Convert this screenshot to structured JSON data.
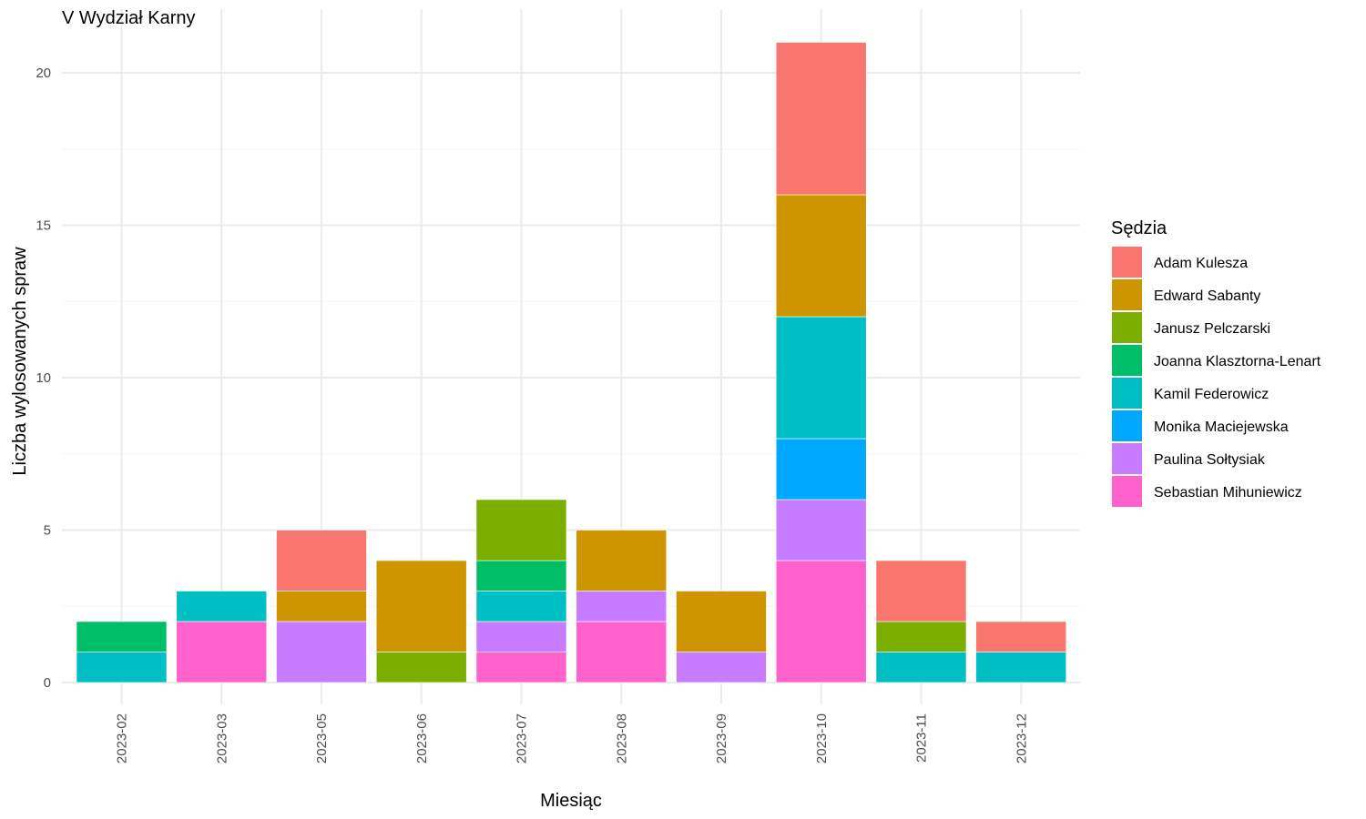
{
  "chart_data": {
    "type": "bar",
    "stacked": true,
    "title": "V Wydział Karny",
    "xlabel": "Miesiąc",
    "ylabel": "Liczba wylosowanych spraw",
    "ylim": [
      0,
      21
    ],
    "yticks": [
      0,
      5,
      10,
      15,
      20
    ],
    "grid": true,
    "legend_title": "Sędzia",
    "legend_position": "right",
    "categories": [
      "2023-02",
      "2023-03",
      "2023-05",
      "2023-06",
      "2023-07",
      "2023-08",
      "2023-09",
      "2023-10",
      "2023-11",
      "2023-12"
    ],
    "series": [
      {
        "name": "Adam Kulesza",
        "color": "#F8766D",
        "values": [
          0,
          0,
          2,
          0,
          0,
          0,
          0,
          5,
          2,
          1
        ]
      },
      {
        "name": "Edward Sabanty",
        "color": "#CD9600",
        "values": [
          0,
          0,
          1,
          3,
          0,
          2,
          2,
          4,
          0,
          0
        ]
      },
      {
        "name": "Janusz Pelczarski",
        "color": "#7CAE00",
        "values": [
          0,
          0,
          0,
          1,
          2,
          0,
          0,
          0,
          1,
          0
        ]
      },
      {
        "name": "Joanna Klasztorna-Lenart",
        "color": "#00BE67",
        "values": [
          1,
          0,
          0,
          0,
          1,
          0,
          0,
          0,
          0,
          0
        ]
      },
      {
        "name": "Kamil Federowicz",
        "color": "#00BFC4",
        "values": [
          1,
          1,
          0,
          0,
          1,
          0,
          0,
          4,
          1,
          1
        ]
      },
      {
        "name": "Monika Maciejewska",
        "color": "#00A9FF",
        "values": [
          0,
          0,
          0,
          0,
          0,
          0,
          0,
          2,
          0,
          0
        ]
      },
      {
        "name": "Paulina Sołtysiak",
        "color": "#C77CFF",
        "values": [
          0,
          0,
          2,
          0,
          1,
          1,
          1,
          2,
          0,
          0
        ]
      },
      {
        "name": "Sebastian Mihuniewicz",
        "color": "#FF61CC",
        "values": [
          0,
          2,
          0,
          0,
          1,
          2,
          0,
          4,
          0,
          0
        ]
      }
    ]
  }
}
